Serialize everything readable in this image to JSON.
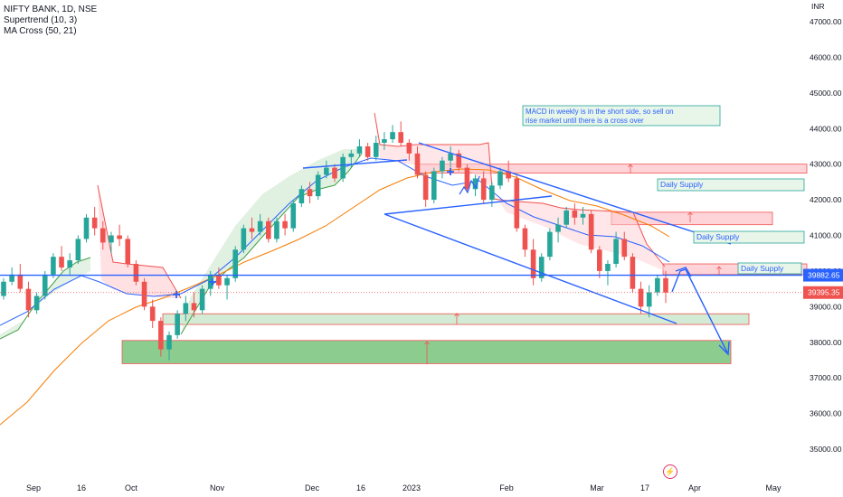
{
  "legend": {
    "symbol": "NIFTY BANK, 1D, NSE",
    "indicator1": "Supertrend (10, 3)",
    "indicator2": "MA Cross (50, 21)"
  },
  "currency": "INR",
  "colors": {
    "up": "#26a69a",
    "down": "#ef5350",
    "trendline": "#2962ff",
    "ma_long": "#f57c00",
    "ma_short": "#2962ff",
    "supertrend_up": "#43a047",
    "supertrend_down": "#ef5350",
    "demand_zone": "#66bb6a",
    "supply_zone": "#ef5350"
  },
  "chart_data": {
    "type": "candlestick",
    "title": "",
    "y_ticks": [
      "47000.00",
      "46000.00",
      "45000.00",
      "44000.00",
      "43000.00",
      "42000.00",
      "41000.00",
      "40000.00",
      "39000.00",
      "38000.00",
      "37000.00",
      "36000.00",
      "35000.00"
    ],
    "ylim": [
      34500,
      47400
    ],
    "x_ticks": [
      "Sep",
      "16",
      "Oct",
      "Nov",
      "Dec",
      "16",
      "2023",
      "Feb",
      "Mar",
      "17",
      "Apr",
      "May"
    ],
    "price_labels": {
      "horizontal_line": "39882.65",
      "last_price": "39395.35"
    },
    "annotation": "MACD in weekly is in the short side, so sell on rise market until there is a cross over",
    "zone_labels": [
      "Daily Supply",
      "Daily Supply",
      "Daily Supply"
    ],
    "ohlc": [
      [
        39300,
        39800,
        39200,
        39700
      ],
      [
        39700,
        40100,
        39600,
        39900
      ],
      [
        39900,
        40200,
        39400,
        39500
      ],
      [
        39500,
        39700,
        38700,
        38900
      ],
      [
        38900,
        39400,
        38800,
        39300
      ],
      [
        39300,
        40000,
        39200,
        39900
      ],
      [
        39900,
        40500,
        39800,
        40400
      ],
      [
        40400,
        40700,
        40000,
        40100
      ],
      [
        40100,
        40500,
        39900,
        40300
      ],
      [
        40300,
        41000,
        40200,
        40900
      ],
      [
        40900,
        41600,
        40800,
        41500
      ],
      [
        41500,
        41800,
        41000,
        41200
      ],
      [
        41200,
        41400,
        40600,
        40800
      ],
      [
        40800,
        41100,
        40500,
        41000
      ],
      [
        41000,
        41300,
        40700,
        40900
      ],
      [
        40900,
        41000,
        40100,
        40200
      ],
      [
        40200,
        40300,
        39600,
        39700
      ],
      [
        39700,
        39800,
        38900,
        39000
      ],
      [
        39000,
        39200,
        38400,
        38600
      ],
      [
        38600,
        38700,
        37600,
        37800
      ],
      [
        37800,
        38300,
        37500,
        38200
      ],
      [
        38200,
        38900,
        38100,
        38800
      ],
      [
        38800,
        39300,
        38600,
        39100
      ],
      [
        39100,
        39400,
        38700,
        38900
      ],
      [
        38900,
        39600,
        38800,
        39500
      ],
      [
        39500,
        40000,
        39300,
        39900
      ],
      [
        39900,
        40100,
        39500,
        39600
      ],
      [
        39600,
        39900,
        39200,
        39800
      ],
      [
        39800,
        40700,
        39700,
        40600
      ],
      [
        40600,
        41300,
        40500,
        41200
      ],
      [
        41200,
        41500,
        40900,
        41100
      ],
      [
        41100,
        41600,
        41000,
        41400
      ],
      [
        41400,
        41500,
        40800,
        40900
      ],
      [
        40900,
        41500,
        40800,
        41400
      ],
      [
        41400,
        41600,
        41000,
        41200
      ],
      [
        41200,
        42000,
        41100,
        41900
      ],
      [
        41900,
        42400,
        41800,
        42300
      ],
      [
        42300,
        42500,
        41900,
        42100
      ],
      [
        42100,
        42800,
        42000,
        42700
      ],
      [
        42700,
        43100,
        42600,
        42900
      ],
      [
        42900,
        43000,
        42500,
        42600
      ],
      [
        42600,
        43300,
        42500,
        43200
      ],
      [
        43200,
        43400,
        42900,
        43300
      ],
      [
        43300,
        43700,
        43200,
        43500
      ],
      [
        43500,
        43600,
        43100,
        43200
      ],
      [
        43200,
        43800,
        43100,
        43600
      ],
      [
        43600,
        43900,
        43400,
        43700
      ],
      [
        43700,
        44100,
        43600,
        43900
      ],
      [
        43900,
        44200,
        43500,
        43600
      ],
      [
        43600,
        43700,
        43100,
        43300
      ],
      [
        43300,
        43500,
        42600,
        42700
      ],
      [
        42700,
        42800,
        41800,
        42000
      ],
      [
        42000,
        42900,
        41900,
        42800
      ],
      [
        42800,
        43200,
        42600,
        43100
      ],
      [
        43100,
        43500,
        42900,
        43300
      ],
      [
        43300,
        43400,
        42800,
        42900
      ],
      [
        42900,
        43000,
        42200,
        42300
      ],
      [
        42300,
        42700,
        42100,
        42600
      ],
      [
        42600,
        42800,
        41900,
        42000
      ],
      [
        42000,
        42500,
        41800,
        42400
      ],
      [
        42400,
        42900,
        42300,
        42800
      ],
      [
        42800,
        43100,
        42500,
        42600
      ],
      [
        42600,
        42700,
        41100,
        41200
      ],
      [
        41200,
        41300,
        40400,
        40600
      ],
      [
        40600,
        40900,
        39600,
        39800
      ],
      [
        39800,
        40500,
        39700,
        40400
      ],
      [
        40400,
        41200,
        40300,
        41100
      ],
      [
        41100,
        41500,
        40800,
        41300
      ],
      [
        41300,
        41800,
        41200,
        41700
      ],
      [
        41700,
        41900,
        41300,
        41500
      ],
      [
        41500,
        41800,
        41300,
        41600
      ],
      [
        41600,
        41700,
        40500,
        40600
      ],
      [
        40600,
        40700,
        39800,
        40000
      ],
      [
        40000,
        40300,
        39600,
        40200
      ],
      [
        40200,
        41100,
        40100,
        40900
      ],
      [
        40900,
        41100,
        40300,
        40400
      ],
      [
        40400,
        40500,
        39400,
        39500
      ],
      [
        39500,
        39700,
        38800,
        39000
      ],
      [
        39000,
        39600,
        38700,
        39400
      ],
      [
        39400,
        39900,
        39300,
        39800
      ],
      [
        39800,
        40000,
        39100,
        39395
      ]
    ]
  }
}
